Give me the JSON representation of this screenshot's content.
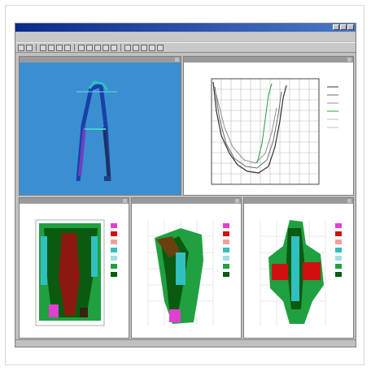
{
  "window": {
    "title": ""
  },
  "menu": {
    "items": [
      "",
      "",
      "",
      "",
      "",
      "",
      "",
      "",
      "",
      "",
      "",
      ""
    ]
  },
  "windows": [
    {
      "caption": ""
    },
    {
      "caption": ""
    },
    {
      "caption": ""
    },
    {
      "caption": ""
    },
    {
      "caption": ""
    }
  ],
  "colors": {
    "titlebar": "#0a2a8a",
    "window_bg": "#c0c0c0",
    "blue_panel": "#3a8fd0",
    "contour_green": "#20a040",
    "contour_dark": "#0a5a10",
    "contour_red": "#d01010",
    "contour_cyan": "#30c0c0",
    "contour_magenta": "#e040d0"
  },
  "icons": [
    "toolbar-button-icon"
  ]
}
